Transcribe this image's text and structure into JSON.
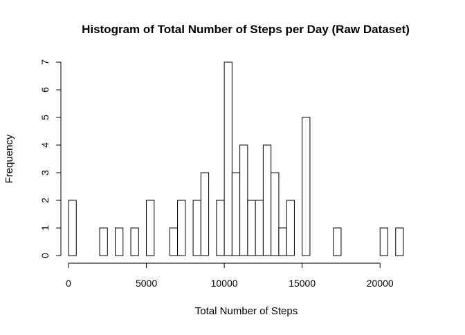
{
  "chart_data": {
    "type": "bar",
    "title": "Histogram of Total Number of Steps per Day (Raw Dataset)",
    "xlabel": "Total Number of Steps",
    "ylabel": "Frequency",
    "bin_width": 500,
    "bin_starts": [
      0,
      500,
      1000,
      1500,
      2000,
      2500,
      3000,
      3500,
      4000,
      4500,
      5000,
      5500,
      6000,
      6500,
      7000,
      7500,
      8000,
      8500,
      9000,
      9500,
      10000,
      10500,
      11000,
      11500,
      12000,
      12500,
      13000,
      13500,
      14000,
      14500,
      15000,
      15500,
      16000,
      16500,
      17000,
      17500,
      18000,
      18500,
      19000,
      19500,
      20000,
      20500,
      21000
    ],
    "values": [
      2,
      0,
      0,
      0,
      1,
      0,
      1,
      0,
      1,
      0,
      2,
      0,
      0,
      1,
      2,
      0,
      2,
      3,
      0,
      2,
      7,
      3,
      4,
      2,
      2,
      4,
      3,
      1,
      2,
      0,
      5,
      0,
      0,
      0,
      1,
      0,
      0,
      0,
      0,
      0,
      1,
      0,
      1
    ],
    "xlim": [
      0,
      21500
    ],
    "ylim": [
      0,
      7
    ],
    "x_ticks": [
      0,
      5000,
      10000,
      15000,
      20000
    ],
    "y_ticks": [
      0,
      1,
      2,
      3,
      4,
      5,
      6,
      7
    ],
    "grid": false,
    "colors": {
      "bar_fill": "#ffffff",
      "bar_stroke": "#000000",
      "text": "#000000"
    }
  }
}
